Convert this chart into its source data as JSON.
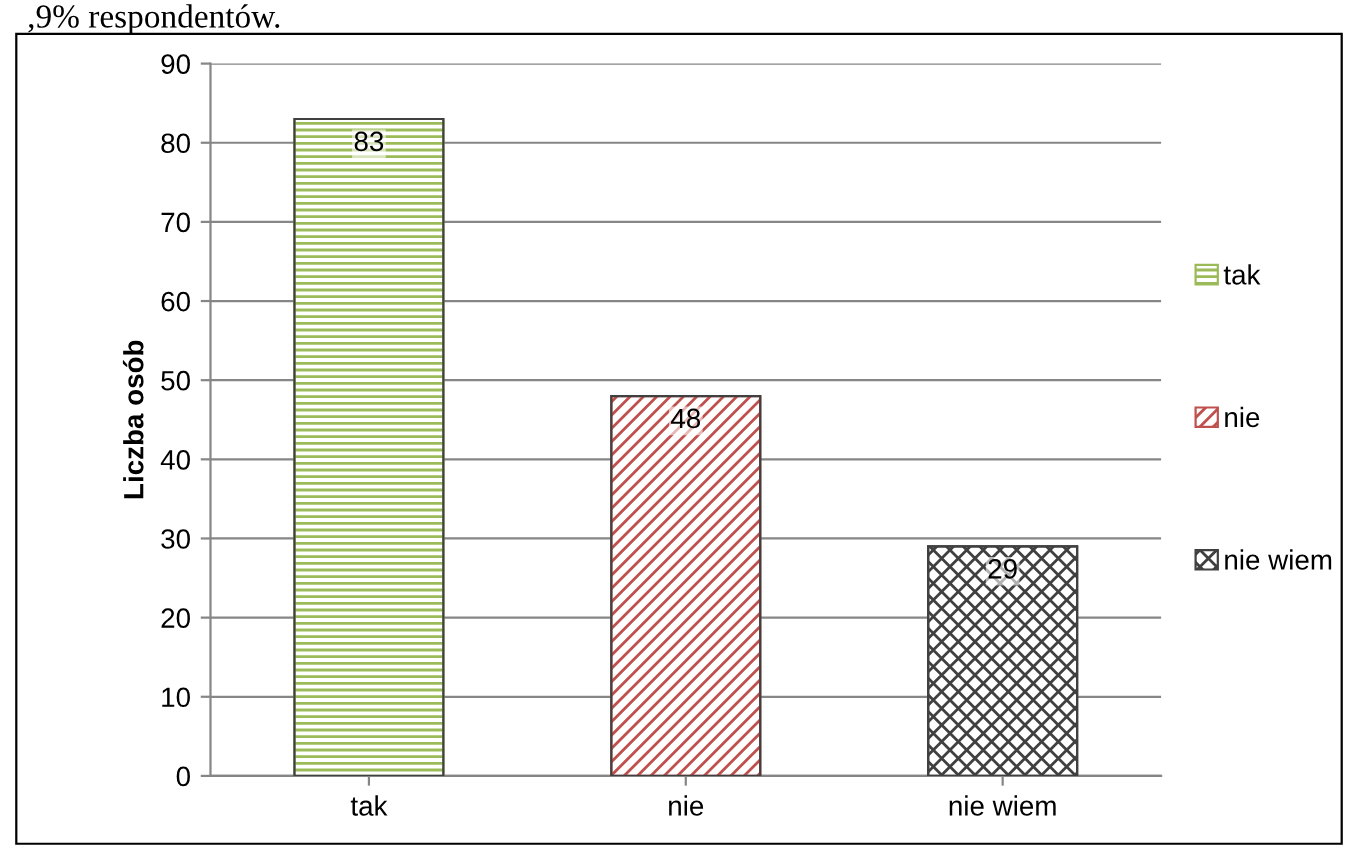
{
  "chart_data": {
    "type": "bar",
    "ylabel": "Liczba osób",
    "categories": [
      "tak",
      "nie",
      "nie wiem"
    ],
    "series": [
      {
        "name": "tak",
        "color": "#9bbb59",
        "values": [
          83,
          null,
          null
        ]
      },
      {
        "name": "nie",
        "color": "#c0504d",
        "values": [
          null,
          48,
          null
        ]
      },
      {
        "name": "nie wiem",
        "color": "#404040",
        "values": [
          null,
          null,
          29
        ]
      }
    ],
    "ylim": [
      0,
      90
    ],
    "yticks": [
      0,
      10,
      20,
      30,
      40,
      50,
      60,
      70,
      80,
      90
    ],
    "grid": "y",
    "legend": "right",
    "data_labels": true,
    "annotations": [
      ",9% respondentów."
    ]
  }
}
